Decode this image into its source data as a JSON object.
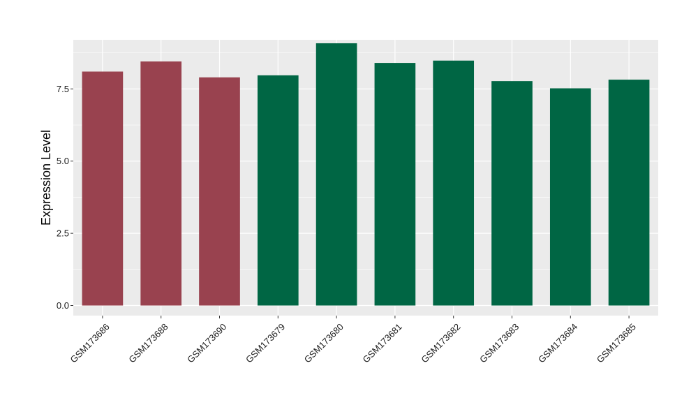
{
  "chart_data": {
    "type": "bar",
    "title": "",
    "xlabel": "",
    "ylabel": "Expression Level",
    "ylim": [
      -0.35,
      9.2
    ],
    "yticks": [
      0.0,
      2.5,
      5.0,
      7.5
    ],
    "ytick_labels": [
      "0.0",
      "2.5",
      "5.0",
      "7.5"
    ],
    "grid": true,
    "legend": "none",
    "categories": [
      "GSM173686",
      "GSM173688",
      "GSM173690",
      "GSM173679",
      "GSM173680",
      "GSM173681",
      "GSM173682",
      "GSM173683",
      "GSM173684",
      "GSM173685"
    ],
    "values": [
      8.1,
      8.45,
      7.9,
      7.97,
      9.08,
      8.4,
      8.48,
      7.77,
      7.52,
      7.82
    ],
    "bar_colors": [
      "#99424f",
      "#99424f",
      "#99424f",
      "#006644",
      "#006644",
      "#006644",
      "#006644",
      "#006644",
      "#006644",
      "#006644"
    ],
    "panel_background": "#ebebeb",
    "grid_color": "#ffffff"
  }
}
